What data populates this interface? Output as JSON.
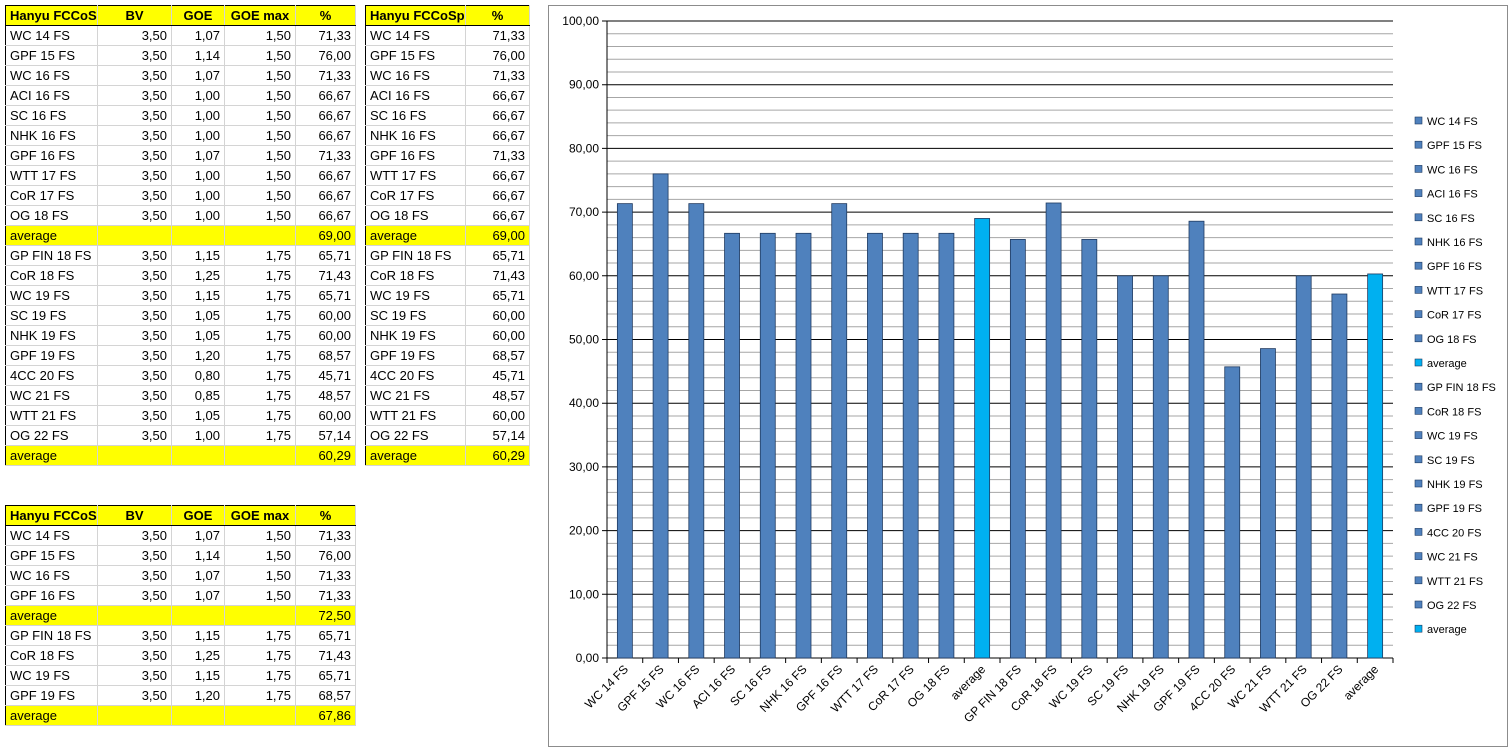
{
  "tables": {
    "t1": {
      "headers": [
        "Hanyu FCCoSp",
        "BV",
        "GOE",
        "GOE max",
        "%"
      ],
      "groups": [
        {
          "rows": [
            [
              "WC 14 FS",
              "3,50",
              "1,07",
              "1,50",
              "71,33"
            ],
            [
              "GPF 15 FS",
              "3,50",
              "1,14",
              "1,50",
              "76,00"
            ],
            [
              "WC 16 FS",
              "3,50",
              "1,07",
              "1,50",
              "71,33"
            ],
            [
              "ACI 16 FS",
              "3,50",
              "1,00",
              "1,50",
              "66,67"
            ],
            [
              "SC 16 FS",
              "3,50",
              "1,00",
              "1,50",
              "66,67"
            ],
            [
              "NHK 16 FS",
              "3,50",
              "1,00",
              "1,50",
              "66,67"
            ],
            [
              "GPF 16 FS",
              "3,50",
              "1,07",
              "1,50",
              "71,33"
            ],
            [
              "WTT 17 FS",
              "3,50",
              "1,00",
              "1,50",
              "66,67"
            ],
            [
              "CoR 17 FS",
              "3,50",
              "1,00",
              "1,50",
              "66,67"
            ],
            [
              "OG 18 FS",
              "3,50",
              "1,00",
              "1,50",
              "66,67"
            ]
          ],
          "average": {
            "label": "average",
            "value": "69,00"
          }
        },
        {
          "rows": [
            [
              "GP FIN 18 FS",
              "3,50",
              "1,15",
              "1,75",
              "65,71"
            ],
            [
              "CoR 18 FS",
              "3,50",
              "1,25",
              "1,75",
              "71,43"
            ],
            [
              "WC 19 FS",
              "3,50",
              "1,15",
              "1,75",
              "65,71"
            ],
            [
              "SC 19 FS",
              "3,50",
              "1,05",
              "1,75",
              "60,00"
            ],
            [
              "NHK 19 FS",
              "3,50",
              "1,05",
              "1,75",
              "60,00"
            ],
            [
              "GPF 19 FS",
              "3,50",
              "1,20",
              "1,75",
              "68,57"
            ],
            [
              "4CC 20 FS",
              "3,50",
              "0,80",
              "1,75",
              "45,71"
            ],
            [
              "WC 21 FS",
              "3,50",
              "0,85",
              "1,75",
              "48,57"
            ],
            [
              "WTT 21 FS",
              "3,50",
              "1,05",
              "1,75",
              "60,00"
            ],
            [
              "OG 22 FS",
              "3,50",
              "1,00",
              "1,75",
              "57,14"
            ]
          ],
          "average": {
            "label": "average",
            "value": "60,29"
          }
        }
      ]
    },
    "t2": {
      "headers": [
        "Hanyu FCCoSp",
        "%"
      ],
      "groups": [
        {
          "rows": [
            [
              "WC 14 FS",
              "71,33"
            ],
            [
              "GPF 15 FS",
              "76,00"
            ],
            [
              "WC 16 FS",
              "71,33"
            ],
            [
              "ACI 16 FS",
              "66,67"
            ],
            [
              "SC 16 FS",
              "66,67"
            ],
            [
              "NHK 16 FS",
              "66,67"
            ],
            [
              "GPF 16 FS",
              "71,33"
            ],
            [
              "WTT 17 FS",
              "66,67"
            ],
            [
              "CoR 17 FS",
              "66,67"
            ],
            [
              "OG 18 FS",
              "66,67"
            ]
          ],
          "average": {
            "label": "average",
            "value": "69,00"
          }
        },
        {
          "rows": [
            [
              "GP FIN 18 FS",
              "65,71"
            ],
            [
              "CoR 18 FS",
              "71,43"
            ],
            [
              "WC 19 FS",
              "65,71"
            ],
            [
              "SC 19 FS",
              "60,00"
            ],
            [
              "NHK 19 FS",
              "60,00"
            ],
            [
              "GPF 19 FS",
              "68,57"
            ],
            [
              "4CC 20 FS",
              "45,71"
            ],
            [
              "WC 21 FS",
              "48,57"
            ],
            [
              "WTT 21 FS",
              "60,00"
            ],
            [
              "OG 22 FS",
              "57,14"
            ]
          ],
          "average": {
            "label": "average",
            "value": "60,29"
          }
        }
      ]
    },
    "t3": {
      "headers": [
        "Hanyu FCCoSp",
        "BV",
        "GOE",
        "GOE max",
        "%"
      ],
      "groups": [
        {
          "rows": [
            [
              "WC 14 FS",
              "3,50",
              "1,07",
              "1,50",
              "71,33"
            ],
            [
              "GPF 15 FS",
              "3,50",
              "1,14",
              "1,50",
              "76,00"
            ],
            [
              "WC 16 FS",
              "3,50",
              "1,07",
              "1,50",
              "71,33"
            ],
            [
              "GPF 16 FS",
              "3,50",
              "1,07",
              "1,50",
              "71,33"
            ]
          ],
          "average": {
            "label": "average",
            "value": "72,50"
          }
        },
        {
          "rows": [
            [
              "GP FIN 18 FS",
              "3,50",
              "1,15",
              "1,75",
              "65,71"
            ],
            [
              "CoR 18 FS",
              "3,50",
              "1,25",
              "1,75",
              "71,43"
            ],
            [
              "WC 19 FS",
              "3,50",
              "1,15",
              "1,75",
              "65,71"
            ],
            [
              "GPF 19 FS",
              "3,50",
              "1,20",
              "1,75",
              "68,57"
            ]
          ],
          "average": {
            "label": "average",
            "value": "67,86"
          }
        }
      ]
    }
  },
  "chart_data": {
    "type": "bar",
    "categories": [
      "WC 14 FS",
      "GPF 15 FS",
      "WC 16 FS",
      "ACI 16 FS",
      "SC 16 FS",
      "NHK 16 FS",
      "GPF 16 FS",
      "WTT 17 FS",
      "CoR 17 FS",
      "OG 18 FS",
      "average",
      "GP FIN 18 FS",
      "CoR 18 FS",
      "WC 19 FS",
      "SC 19 FS",
      "NHK 19 FS",
      "GPF 19 FS",
      "4CC 20 FS",
      "WC 21 FS",
      "WTT 21 FS",
      "OG 22 FS",
      "average"
    ],
    "values": [
      71.33,
      76.0,
      71.33,
      66.67,
      66.67,
      66.67,
      71.33,
      66.67,
      66.67,
      66.67,
      69.0,
      65.71,
      71.43,
      65.71,
      60.0,
      60.0,
      68.57,
      45.71,
      48.57,
      60.0,
      57.14,
      60.29
    ],
    "highlight": [
      false,
      false,
      false,
      false,
      false,
      false,
      false,
      false,
      false,
      false,
      true,
      false,
      false,
      false,
      false,
      false,
      false,
      false,
      false,
      false,
      false,
      true
    ],
    "ylim": [
      0,
      100
    ],
    "y_major_ticks": [
      "0,00",
      "10,00",
      "20,00",
      "30,00",
      "40,00",
      "50,00",
      "60,00",
      "70,00",
      "80,00",
      "90,00",
      "100,00"
    ],
    "y_minor_step": 2,
    "grid": true,
    "legend_position": "right",
    "colors": {
      "bar": "#4f81bd",
      "bar_edge": "#1f3a60",
      "average": "#00b0f0",
      "major_grid": "#000000",
      "minor_grid": "#a6a6a6"
    },
    "title": "",
    "xlabel": "",
    "ylabel": ""
  }
}
